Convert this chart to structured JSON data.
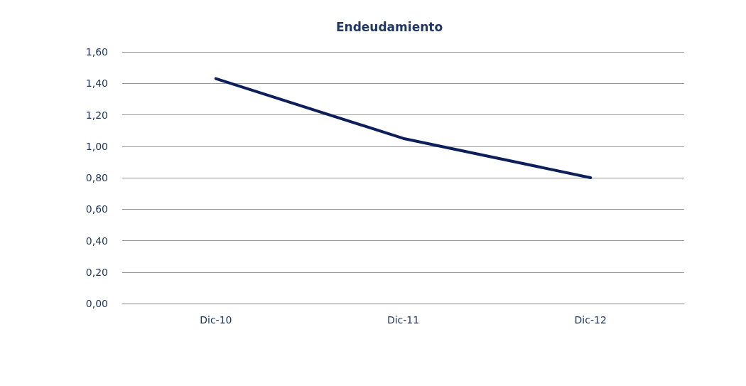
{
  "chart_data": {
    "type": "line",
    "title": "Endeudamiento",
    "categories": [
      "Dic-10",
      "Dic-11",
      "Dic-12"
    ],
    "series": [
      {
        "color": "#0c1f5a",
        "values": [
          1.43,
          1.05,
          0.8
        ]
      }
    ],
    "ylim": [
      0,
      1.6
    ],
    "yticks": [
      {
        "value": 0,
        "label": "0,00"
      },
      {
        "value": 0.2,
        "label": "0,20"
      },
      {
        "value": 0.4,
        "label": "0,40"
      },
      {
        "value": 0.6,
        "label": "0,60"
      },
      {
        "value": 0.8,
        "label": "0,80"
      },
      {
        "value": 1,
        "label": "1,00"
      },
      {
        "value": 1.2,
        "label": "1,20"
      },
      {
        "value": 1.4,
        "label": "1,40"
      },
      {
        "value": 1.6,
        "label": "1,60"
      }
    ],
    "grid": "y",
    "marker": "none",
    "line_style": "solid"
  }
}
